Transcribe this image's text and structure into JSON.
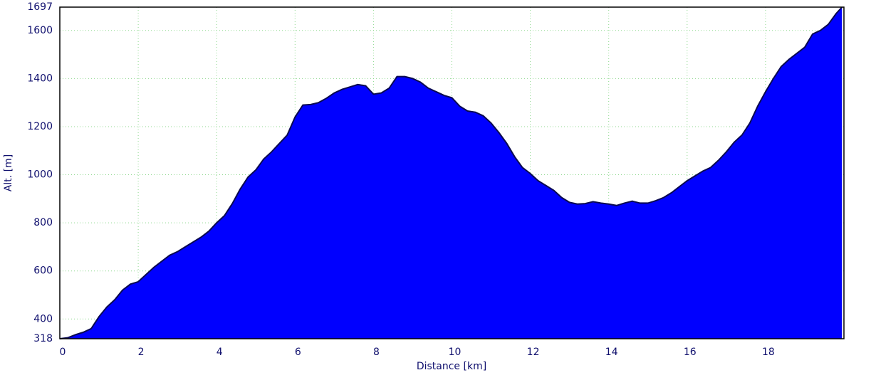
{
  "chart_data": {
    "type": "area",
    "xlabel": "Distance [km]",
    "ylabel": "Alt. [m]",
    "x": [
      0,
      0.2,
      0.4,
      0.6,
      0.8,
      1.0,
      1.2,
      1.4,
      1.6,
      1.8,
      2.0,
      2.2,
      2.4,
      2.6,
      2.8,
      3.0,
      3.2,
      3.4,
      3.6,
      3.8,
      4.0,
      4.2,
      4.4,
      4.6,
      4.8,
      5.0,
      5.2,
      5.4,
      5.6,
      5.8,
      6.0,
      6.2,
      6.4,
      6.6,
      6.8,
      7.0,
      7.2,
      7.4,
      7.6,
      7.8,
      8.0,
      8.2,
      8.4,
      8.6,
      8.8,
      9.0,
      9.2,
      9.4,
      9.6,
      9.8,
      10.0,
      10.2,
      10.4,
      10.6,
      10.8,
      11.0,
      11.2,
      11.4,
      11.6,
      11.8,
      12.0,
      12.2,
      12.4,
      12.6,
      12.8,
      13.0,
      13.2,
      13.4,
      13.6,
      13.8,
      14.0,
      14.2,
      14.4,
      14.6,
      14.8,
      15.0,
      15.2,
      15.4,
      15.6,
      15.8,
      16.0,
      16.2,
      16.4,
      16.6,
      16.8,
      17.0,
      17.2,
      17.4,
      17.6,
      17.8,
      18.0,
      18.2,
      18.4,
      18.6,
      18.8,
      19.0,
      19.2,
      19.4,
      19.6,
      19.8,
      19.95
    ],
    "values": [
      318,
      322,
      335,
      345,
      360,
      410,
      450,
      480,
      520,
      545,
      555,
      585,
      615,
      640,
      665,
      680,
      700,
      720,
      740,
      765,
      800,
      830,
      880,
      940,
      990,
      1020,
      1065,
      1095,
      1130,
      1165,
      1240,
      1290,
      1292,
      1300,
      1318,
      1340,
      1355,
      1365,
      1375,
      1370,
      1335,
      1340,
      1360,
      1408,
      1408,
      1400,
      1385,
      1360,
      1345,
      1330,
      1320,
      1285,
      1265,
      1260,
      1245,
      1215,
      1175,
      1130,
      1075,
      1030,
      1005,
      975,
      955,
      935,
      905,
      885,
      878,
      880,
      888,
      882,
      878,
      872,
      882,
      890,
      882,
      882,
      892,
      905,
      925,
      950,
      975,
      995,
      1015,
      1030,
      1060,
      1095,
      1135,
      1165,
      1215,
      1285,
      1345,
      1400,
      1450,
      1480,
      1505,
      1530,
      1585,
      1600,
      1625,
      1670,
      1697
    ],
    "color": "#0000ff",
    "line_color": "#0a0a50",
    "xlim": [
      0,
      20
    ],
    "xticks": [
      0,
      2,
      4,
      6,
      8,
      10,
      12,
      14,
      16,
      18
    ],
    "ylim": [
      318,
      1697
    ],
    "yticks": [
      318,
      400,
      600,
      800,
      1000,
      1200,
      1400,
      1600,
      1697
    ],
    "grid": true
  }
}
